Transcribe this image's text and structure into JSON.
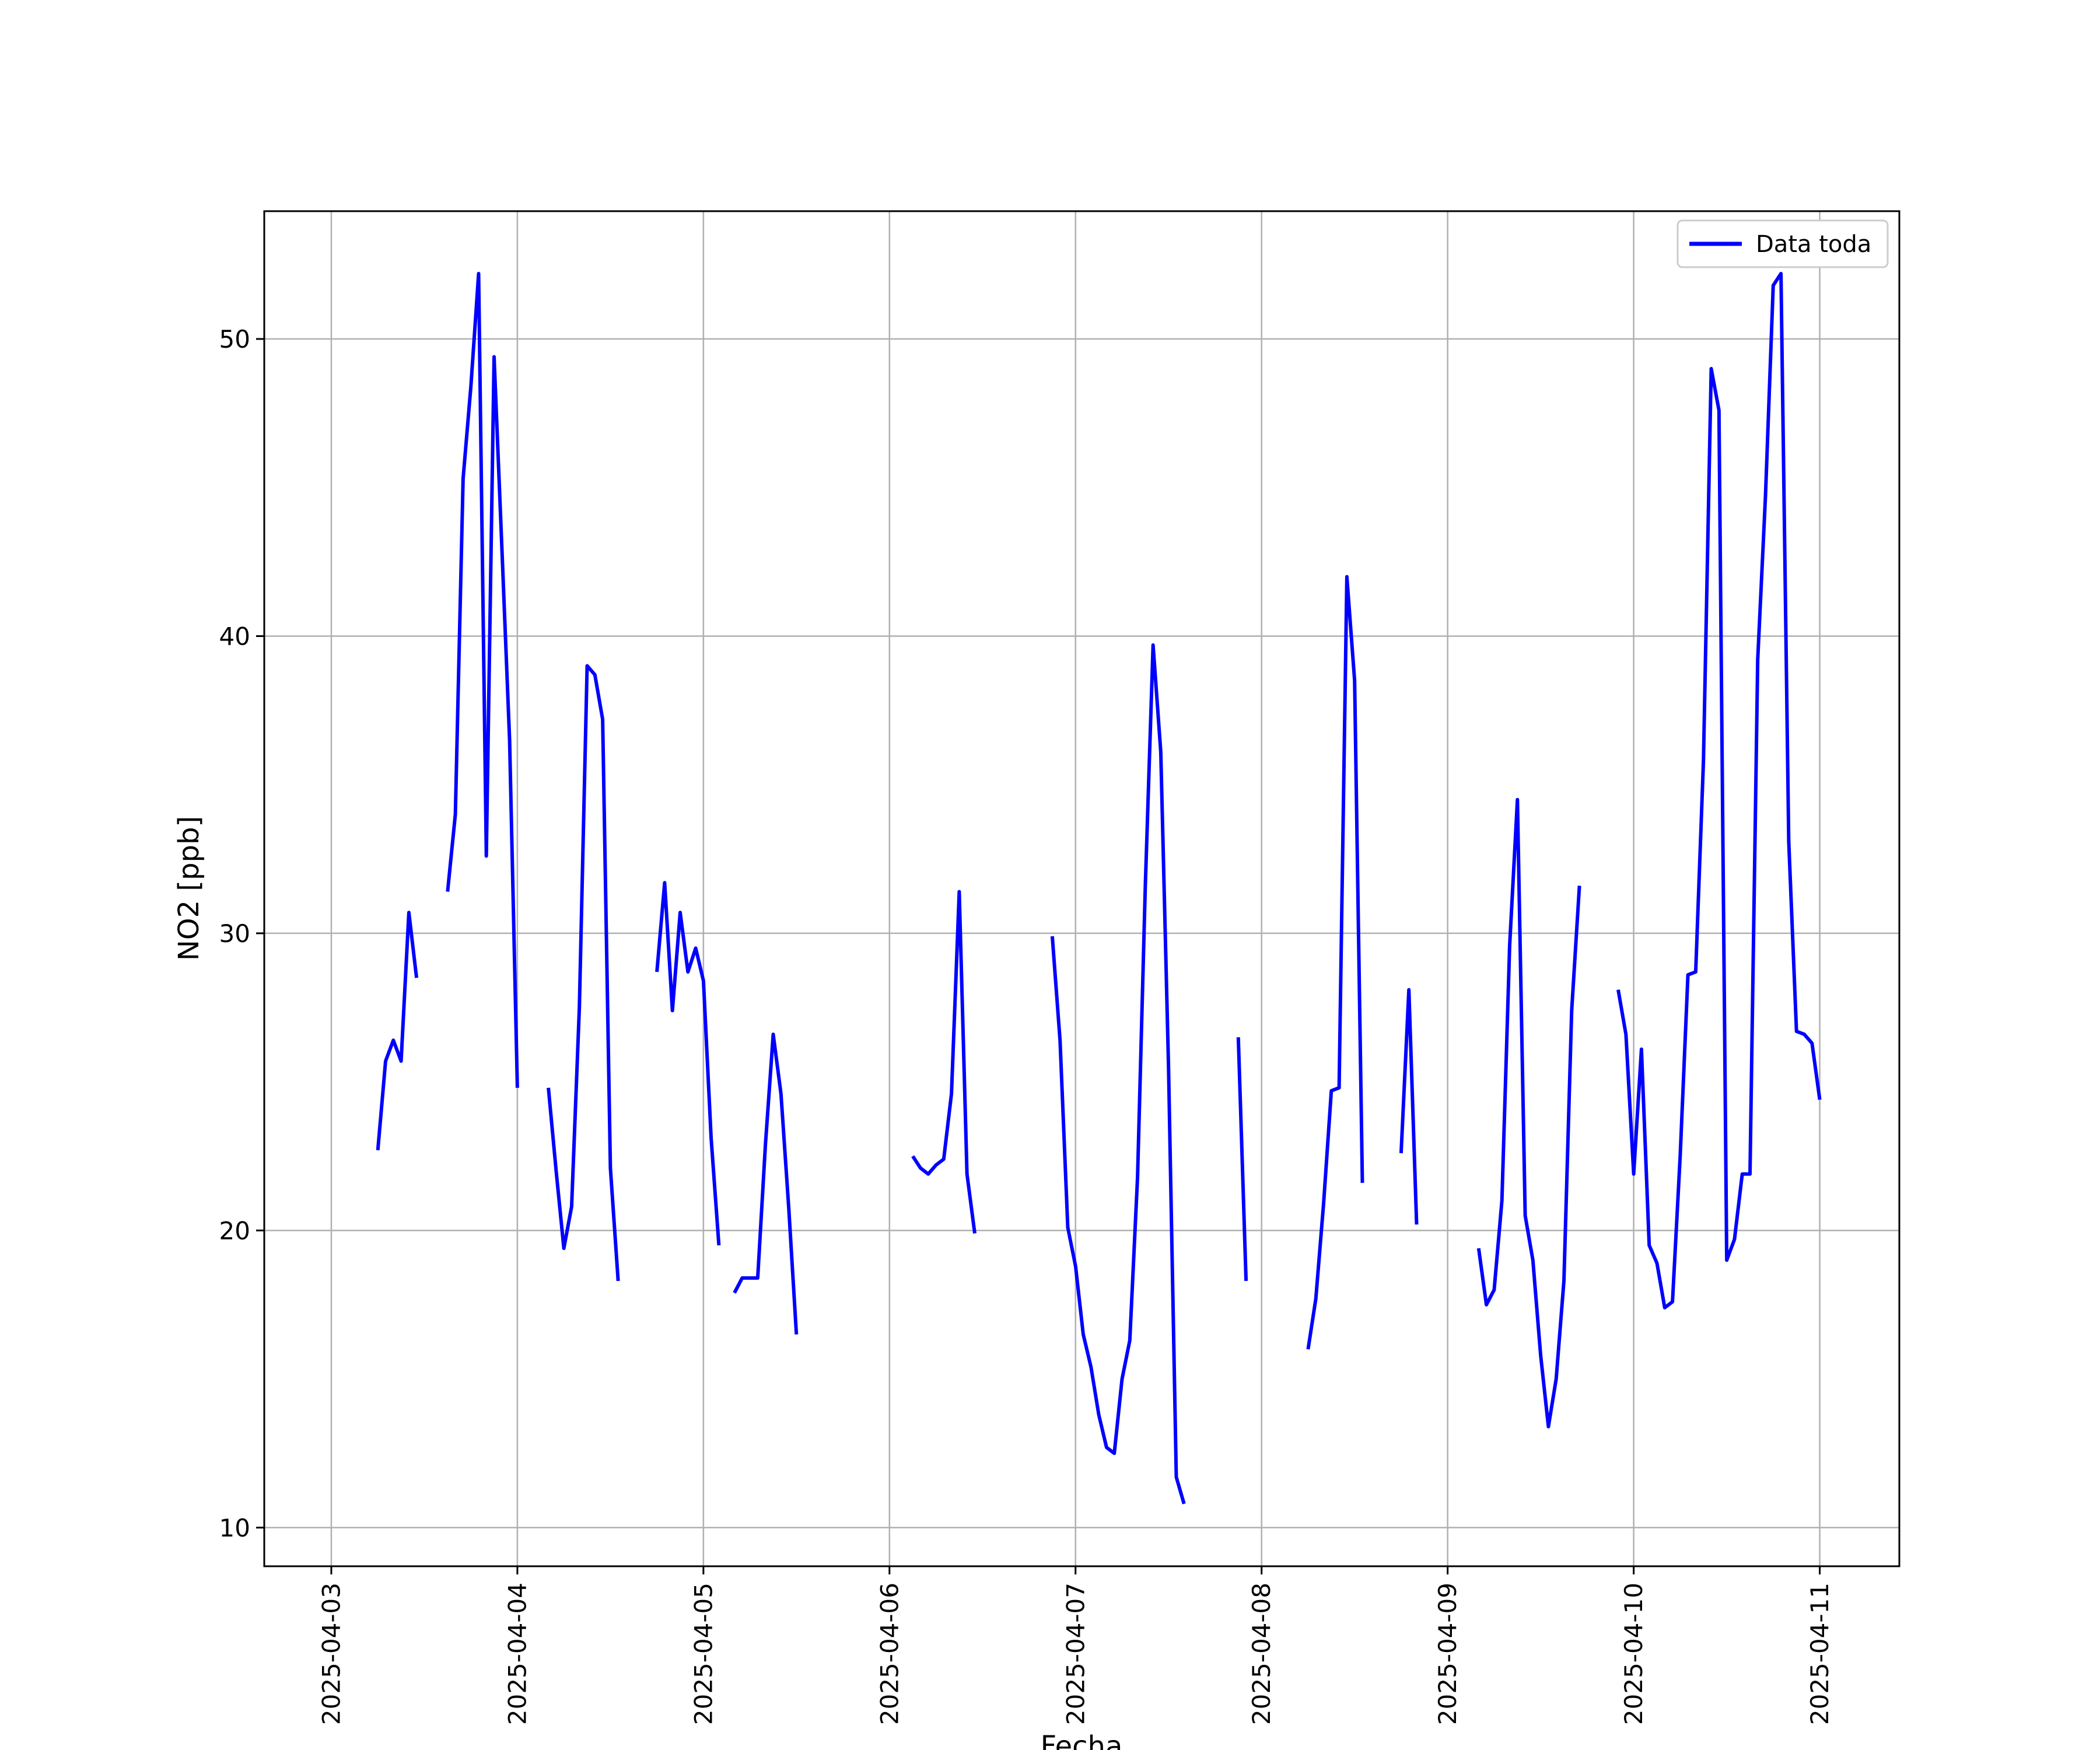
{
  "chart_data": {
    "type": "line",
    "title": "",
    "xlabel": "Fecha",
    "ylabel": "NO2 [ppb]",
    "x_ticks": [
      "2025-04-03",
      "2025-04-04",
      "2025-04-05",
      "2025-04-06",
      "2025-04-07",
      "2025-04-08",
      "2025-04-09",
      "2025-04-10",
      "2025-04-11"
    ],
    "y_ticks": [
      10,
      20,
      30,
      40,
      50
    ],
    "xlim": [
      "2025-04-02 15:21",
      "2025-04-11 10:16"
    ],
    "ylim": [
      8.7,
      54.3
    ],
    "grid": true,
    "legend_position": "top-right",
    "line_color": "#0000ff",
    "series": [
      {
        "name": "Data toda",
        "segments": [
          [
            [
              "2025-04-03 06:00",
              22.7
            ],
            [
              "2025-04-03 07:00",
              25.7
            ],
            [
              "2025-04-03 08:00",
              26.4
            ],
            [
              "2025-04-03 09:00",
              25.7
            ],
            [
              "2025-04-03 10:00",
              30.7
            ],
            [
              "2025-04-03 11:00",
              28.5
            ]
          ],
          [
            [
              "2025-04-03 15:00",
              31.4
            ],
            [
              "2025-04-03 16:00",
              34.0
            ],
            [
              "2025-04-03 17:00",
              45.3
            ],
            [
              "2025-04-03 18:00",
              48.4
            ],
            [
              "2025-04-03 19:00",
              52.2
            ],
            [
              "2025-04-03 20:00",
              32.6
            ],
            [
              "2025-04-03 21:00",
              49.4
            ],
            [
              "2025-04-03 22:00",
              43.0
            ],
            [
              "2025-04-03 23:00",
              36.5
            ],
            [
              "2025-04-04 00:00",
              24.8
            ]
          ],
          [
            [
              "2025-04-04 04:00",
              24.8
            ],
            [
              "2025-04-04 05:00",
              22.0
            ],
            [
              "2025-04-04 06:00",
              19.4
            ],
            [
              "2025-04-04 07:00",
              20.8
            ],
            [
              "2025-04-04 08:00",
              27.5
            ],
            [
              "2025-04-04 09:00",
              39.0
            ],
            [
              "2025-04-04 10:00",
              38.7
            ],
            [
              "2025-04-04 11:00",
              37.2
            ],
            [
              "2025-04-04 12:00",
              22.1
            ],
            [
              "2025-04-04 13:00",
              18.3
            ]
          ],
          [
            [
              "2025-04-04 18:00",
              28.7
            ],
            [
              "2025-04-04 19:00",
              31.7
            ],
            [
              "2025-04-04 20:00",
              27.4
            ],
            [
              "2025-04-04 21:00",
              30.7
            ],
            [
              "2025-04-04 22:00",
              28.7
            ],
            [
              "2025-04-04 23:00",
              29.5
            ],
            [
              "2025-04-05 00:00",
              28.4
            ],
            [
              "2025-04-05 01:00",
              23.1
            ],
            [
              "2025-04-05 02:00",
              19.5
            ]
          ],
          [
            [
              "2025-04-05 04:00",
              17.9
            ],
            [
              "2025-04-05 05:00",
              18.4
            ],
            [
              "2025-04-05 06:00",
              18.4
            ],
            [
              "2025-04-05 07:00",
              18.4
            ],
            [
              "2025-04-05 08:00",
              22.9
            ],
            [
              "2025-04-05 09:00",
              26.6
            ],
            [
              "2025-04-05 10:00",
              24.6
            ],
            [
              "2025-04-05 11:00",
              20.8
            ],
            [
              "2025-04-05 12:00",
              16.5
            ]
          ],
          [
            [
              "2025-04-06 03:00",
              22.5
            ],
            [
              "2025-04-06 04:00",
              22.1
            ],
            [
              "2025-04-06 05:00",
              21.9
            ],
            [
              "2025-04-06 06:00",
              22.2
            ],
            [
              "2025-04-06 07:00",
              22.4
            ],
            [
              "2025-04-06 08:00",
              24.6
            ],
            [
              "2025-04-06 09:00",
              31.4
            ],
            [
              "2025-04-06 10:00",
              21.9
            ],
            [
              "2025-04-06 11:00",
              19.9
            ]
          ],
          [
            [
              "2025-04-06 21:00",
              29.9
            ],
            [
              "2025-04-06 22:00",
              26.4
            ],
            [
              "2025-04-06 23:00",
              20.1
            ],
            [
              "2025-04-07 00:00",
              18.8
            ],
            [
              "2025-04-07 01:00",
              16.5
            ],
            [
              "2025-04-07 02:00",
              15.4
            ],
            [
              "2025-04-07 03:00",
              13.8
            ],
            [
              "2025-04-07 04:00",
              12.7
            ],
            [
              "2025-04-07 05:00",
              12.5
            ],
            [
              "2025-04-07 06:00",
              15.0
            ],
            [
              "2025-04-07 07:00",
              16.3
            ],
            [
              "2025-04-07 08:00",
              21.8
            ],
            [
              "2025-04-07 09:00",
              31.6
            ],
            [
              "2025-04-07 10:00",
              39.7
            ],
            [
              "2025-04-07 11:00",
              36.1
            ],
            [
              "2025-04-07 12:00",
              25.5
            ],
            [
              "2025-04-07 13:00",
              11.7
            ],
            [
              "2025-04-07 14:00",
              10.8
            ]
          ],
          [
            [
              "2025-04-07 21:00",
              26.5
            ],
            [
              "2025-04-07 22:00",
              18.3
            ]
          ],
          [
            [
              "2025-04-08 06:00",
              16.0
            ],
            [
              "2025-04-08 07:00",
              17.7
            ],
            [
              "2025-04-08 08:00",
              20.9
            ],
            [
              "2025-04-08 09:00",
              24.7
            ],
            [
              "2025-04-08 10:00",
              24.8
            ],
            [
              "2025-04-08 11:00",
              42.0
            ],
            [
              "2025-04-08 12:00",
              38.5
            ],
            [
              "2025-04-08 13:00",
              21.6
            ]
          ],
          [
            [
              "2025-04-08 18:00",
              22.6
            ],
            [
              "2025-04-08 19:00",
              28.1
            ],
            [
              "2025-04-08 20:00",
              20.2
            ]
          ],
          [
            [
              "2025-04-09 04:00",
              19.4
            ],
            [
              "2025-04-09 05:00",
              17.5
            ],
            [
              "2025-04-09 06:00",
              18.0
            ],
            [
              "2025-04-09 07:00",
              21.0
            ],
            [
              "2025-04-09 08:00",
              29.6
            ],
            [
              "2025-04-09 09:00",
              34.5
            ],
            [
              "2025-04-09 10:00",
              20.5
            ],
            [
              "2025-04-09 11:00",
              19.0
            ],
            [
              "2025-04-09 12:00",
              15.8
            ],
            [
              "2025-04-09 13:00",
              13.4
            ],
            [
              "2025-04-09 14:00",
              15.0
            ],
            [
              "2025-04-09 15:00",
              18.3
            ],
            [
              "2025-04-09 16:00",
              27.4
            ],
            [
              "2025-04-09 17:00",
              31.6
            ]
          ],
          [
            [
              "2025-04-09 22:00",
              28.1
            ],
            [
              "2025-04-09 23:00",
              26.6
            ],
            [
              "2025-04-10 00:00",
              21.9
            ],
            [
              "2025-04-10 01:00",
              26.1
            ],
            [
              "2025-04-10 02:00",
              19.5
            ],
            [
              "2025-04-10 03:00",
              18.9
            ],
            [
              "2025-04-10 04:00",
              17.4
            ],
            [
              "2025-04-10 05:00",
              17.6
            ],
            [
              "2025-04-10 06:00",
              22.5
            ],
            [
              "2025-04-10 07:00",
              28.6
            ],
            [
              "2025-04-10 08:00",
              28.7
            ],
            [
              "2025-04-10 09:00",
              35.8
            ],
            [
              "2025-04-10 10:00",
              49.0
            ],
            [
              "2025-04-10 11:00",
              47.6
            ],
            [
              "2025-04-10 12:00",
              19.0
            ],
            [
              "2025-04-10 13:00",
              19.7
            ],
            [
              "2025-04-10 14:00",
              21.9
            ],
            [
              "2025-04-10 15:00",
              21.9
            ],
            [
              "2025-04-10 16:00",
              39.2
            ],
            [
              "2025-04-10 17:00",
              44.7
            ],
            [
              "2025-04-10 18:00",
              51.8
            ],
            [
              "2025-04-10 19:00",
              52.2
            ],
            [
              "2025-04-10 20:00",
              33.1
            ],
            [
              "2025-04-10 21:00",
              26.7
            ],
            [
              "2025-04-10 22:00",
              26.6
            ],
            [
              "2025-04-10 23:00",
              26.3
            ],
            [
              "2025-04-11 00:00",
              24.4
            ]
          ]
        ]
      }
    ]
  }
}
